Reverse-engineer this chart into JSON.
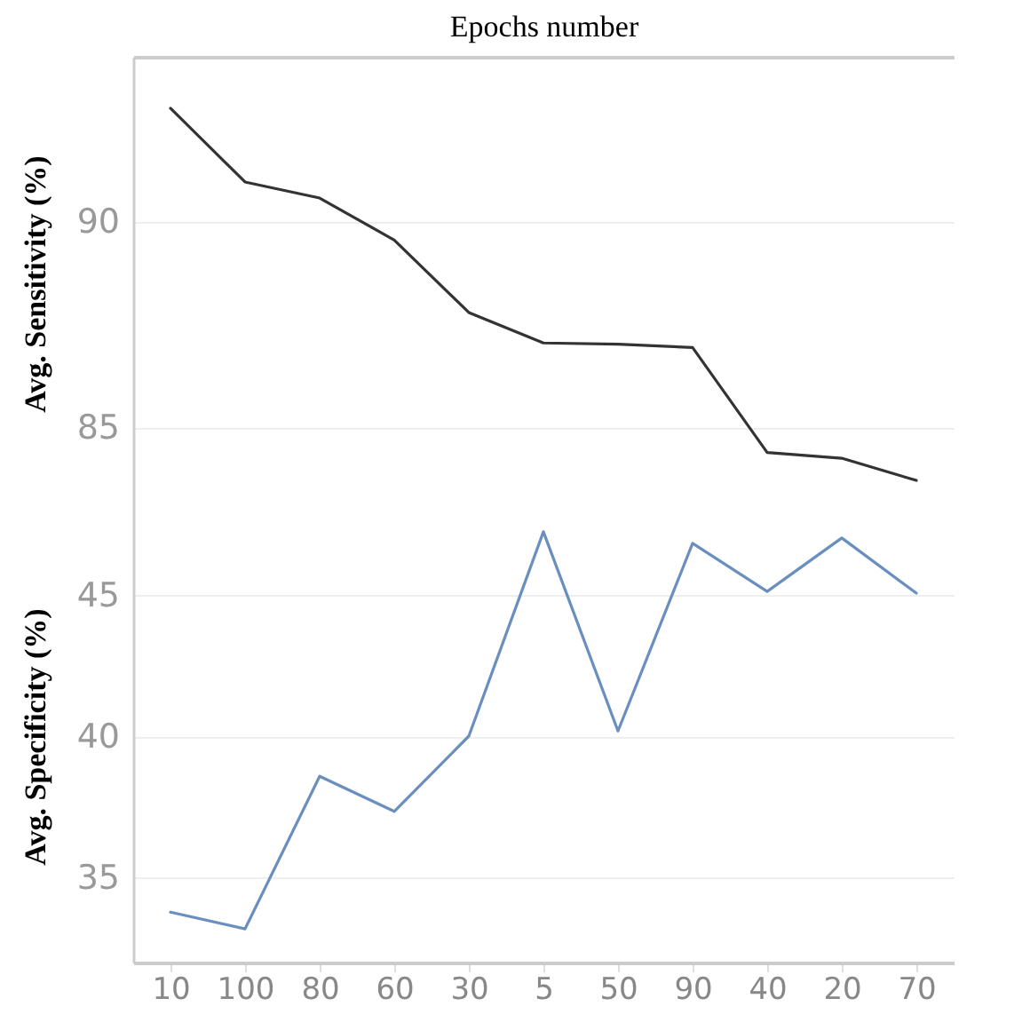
{
  "chart_data": [
    {
      "type": "line",
      "xlabel": "Epochs number",
      "ylabel": "Avg. Sensitivity (%)",
      "categories": [
        "10",
        "100",
        "80",
        "60",
        "30",
        "5",
        "50",
        "90",
        "40",
        "20",
        "70"
      ],
      "series": [
        {
          "color": "#333333",
          "values": [
            92.75,
            90.96,
            90.57,
            89.55,
            87.79,
            87.05,
            87.02,
            86.94,
            84.39,
            84.25,
            83.71
          ]
        }
      ],
      "ylim": [
        83,
        94
      ],
      "yticks": [
        85,
        90
      ],
      "grid": "y",
      "tick_labels": "y",
      "marker": "none"
    },
    {
      "type": "line",
      "ylabel": "Avg. Specificity (%)",
      "categories": [
        "10",
        "100",
        "80",
        "60",
        "30",
        "5",
        "50",
        "90",
        "40",
        "20",
        "70"
      ],
      "series": [
        {
          "color": "#6a8fbf",
          "values": [
            33.78,
            33.19,
            38.58,
            37.34,
            40.0,
            47.22,
            40.18,
            46.81,
            45.11,
            47.0,
            45.05
          ]
        }
      ],
      "ylim": [
        32,
        48
      ],
      "yticks": [
        35,
        40,
        45
      ],
      "grid": "y",
      "marker": "none"
    }
  ]
}
